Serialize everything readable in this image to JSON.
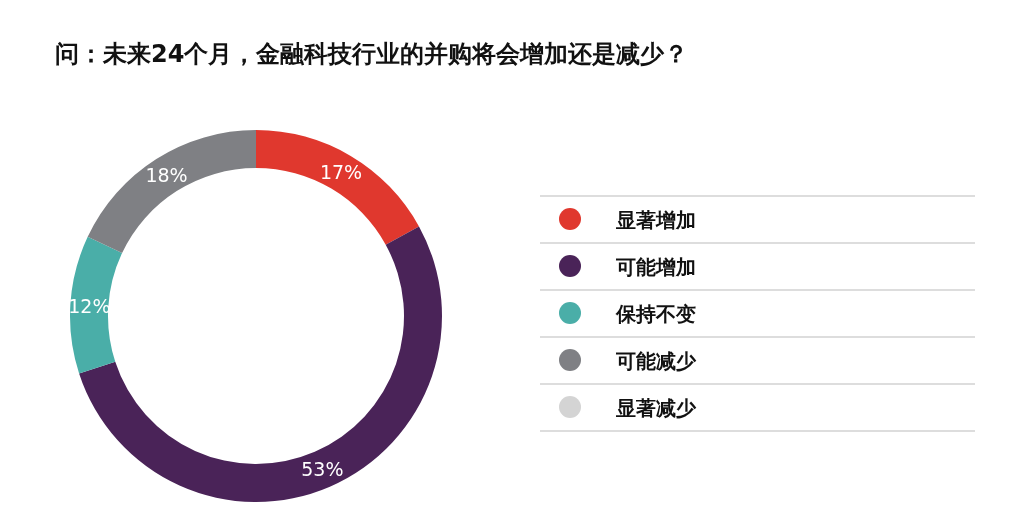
{
  "chart_data": {
    "type": "donut",
    "title": "问：未来24个月，金融科技行业的并购将会增加还是减少？",
    "categories": [
      "显著增加",
      "可能增加",
      "保持不变",
      "可能减少",
      "显著减少"
    ],
    "values": [
      17,
      53,
      12,
      18,
      0
    ],
    "colors": [
      "#e0382e",
      "#4a2358",
      "#4aaea8",
      "#7f8084",
      "#d4d4d4"
    ],
    "value_labels": [
      "17%",
      "53%",
      "12%",
      "18%",
      null
    ],
    "legend": "right"
  }
}
